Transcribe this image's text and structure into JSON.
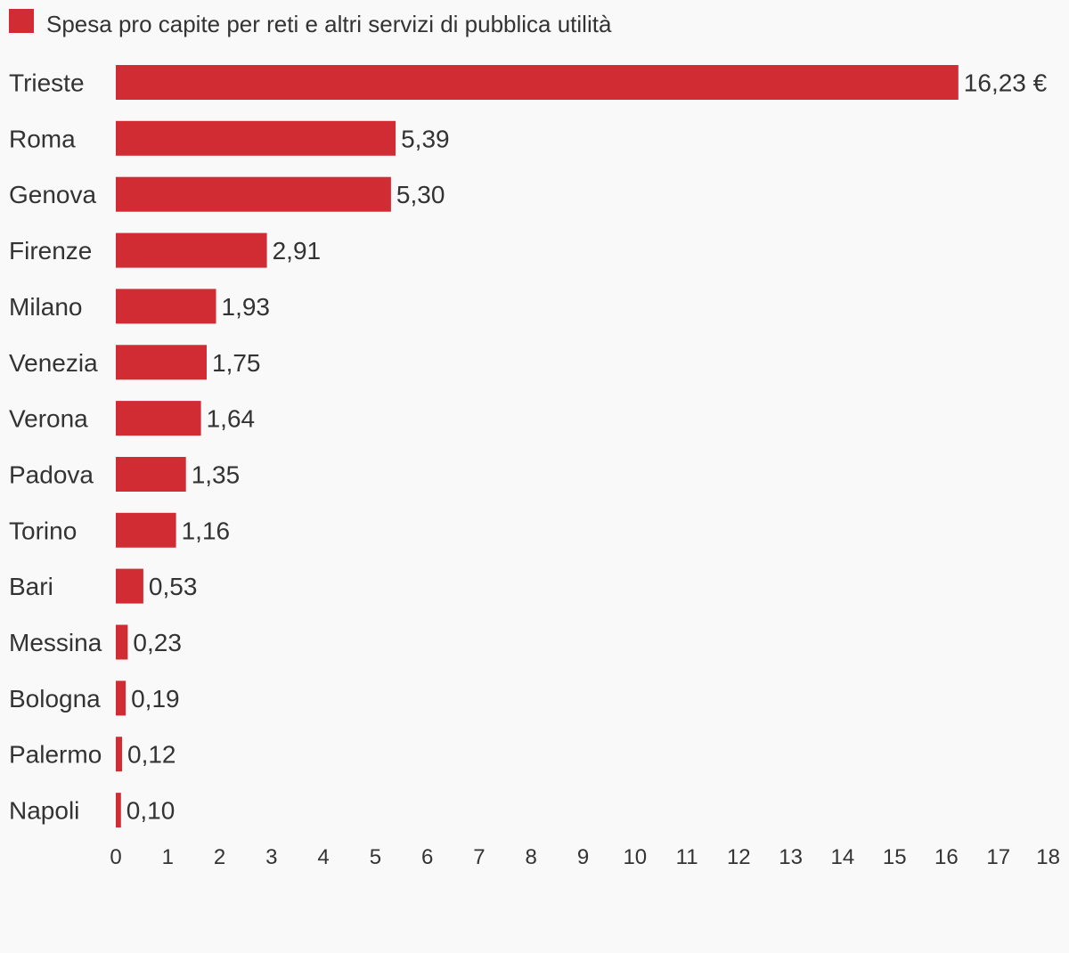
{
  "chart_data": {
    "type": "bar",
    "orientation": "horizontal",
    "title": "",
    "xlabel": "",
    "ylabel": "",
    "legend": {
      "placement": "top-left",
      "entries": [
        {
          "name": "Spesa pro capite per reti e altri servizi di pubblica utilità",
          "color": "#d12b34"
        }
      ]
    },
    "categories": [
      "Trieste",
      "Roma",
      "Genova",
      "Firenze",
      "Milano",
      "Venezia",
      "Verona",
      "Padova",
      "Torino",
      "Bari",
      "Messina",
      "Bologna",
      "Palermo",
      "Napoli"
    ],
    "series": [
      {
        "name": "Spesa pro capite per reti e altri servizi di pubblica utilità",
        "color": "#d12b34",
        "values": [
          16.23,
          5.39,
          5.3,
          2.91,
          1.93,
          1.75,
          1.64,
          1.35,
          1.16,
          0.53,
          0.23,
          0.19,
          0.12,
          0.1
        ],
        "value_labels": [
          "16,23 €",
          "5,39",
          "5,30",
          "2,91",
          "1,93",
          "1,75",
          "1,64",
          "1,35",
          "1,16",
          "0,53",
          "0,23",
          "0,19",
          "0,12",
          "0,10"
        ]
      }
    ],
    "xlim": [
      0,
      18
    ],
    "xticks": [
      0,
      1,
      2,
      3,
      4,
      5,
      6,
      7,
      8,
      9,
      10,
      11,
      12,
      13,
      14,
      15,
      16,
      17,
      18
    ],
    "xtick_labels": [
      "0",
      "1",
      "2",
      "3",
      "4",
      "5",
      "6",
      "7",
      "8",
      "9",
      "10",
      "11",
      "12",
      "13",
      "14",
      "15",
      "16",
      "17",
      "18"
    ],
    "grid": false
  }
}
